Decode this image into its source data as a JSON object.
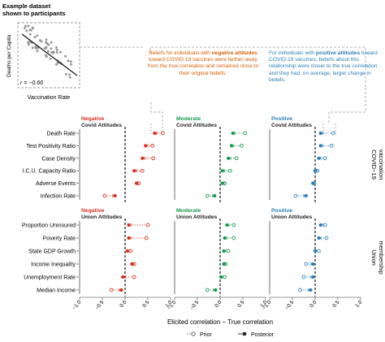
{
  "example": {
    "title": "Example dataset\nshown to participants",
    "ylabel": "Deaths per Capita",
    "xlabel": "Vaccination Rate",
    "r_label": "r = −0.66"
  },
  "annotations": {
    "left": {
      "pre": "Beliefs for individuals with",
      "bold": "negative attitudes",
      "post": "toward COVID-19 vaccines were farther away from the true correlation and remained close to their original beliefs."
    },
    "right": {
      "pre": "For individuals with",
      "bold": "positive attitudes",
      "post": "toward COVID-19 vaccines, beliefs about this relationship were closer to the true correlation and they had, on average, larger change in beliefs."
    }
  },
  "colors": {
    "negative": "#d7301f",
    "moderate": "#1a9850",
    "positive": "#2b7fb5",
    "annotation_left": "#d95f02",
    "annotation_right": "#2b7fb5"
  },
  "chart_data": {
    "type": "scatter",
    "xlabel": "Elicited correlation − True correlation",
    "xlim": [
      -1.0,
      1.0
    ],
    "xticks": [
      "−1.0",
      "−0.5",
      "0.0",
      "0.5",
      "1.0"
    ],
    "legend": {
      "prior": "Prior",
      "posterior": "Posterior",
      "placement": "bottom"
    },
    "columns": [
      {
        "key": "neg",
        "line1": "Negative",
        "line2": "Covid Attitudes",
        "line2b": "Union Attitudes",
        "color": "negative"
      },
      {
        "key": "mod",
        "line1": "Moderate",
        "line2": "Covid Attitudes",
        "line2b": "Union Attitudes",
        "color": "moderate"
      },
      {
        "key": "pos",
        "line1": "Positive",
        "line2": "Covid Attitudes",
        "line2b": "Union Attitudes",
        "color": "positive"
      }
    ],
    "panels": [
      {
        "strip": "COVID−19\nvaccination",
        "categories": [
          "Death Rate",
          "Test Positivity Ratio",
          "Case Density",
          "I.C.U. Capacity Ratio",
          "Adverse Events",
          "Infection Rate"
        ],
        "prior": {
          "neg": [
            0.83,
            0.6,
            0.62,
            0.38,
            0.3,
            -0.45
          ],
          "mod": [
            0.55,
            0.47,
            0.36,
            0.22,
            0.1,
            -0.28
          ],
          "pos": [
            0.4,
            0.36,
            0.22,
            0.05,
            -0.02,
            -0.43
          ]
        },
        "posterior": {
          "neg": [
            0.65,
            0.45,
            0.38,
            0.2,
            0.25,
            -0.22
          ],
          "mod": [
            0.28,
            0.25,
            0.18,
            0.05,
            0.05,
            -0.12
          ],
          "pos": [
            0.12,
            0.12,
            0.08,
            0.0,
            -0.05,
            -0.2
          ]
        }
      },
      {
        "strip": "Union\nmembership",
        "categories": [
          "Proportion Uninsured",
          "Poverty Rate",
          "State GDP Growth",
          "Income Inequality",
          "Unemployment Rate",
          "Median Income"
        ],
        "prior": {
          "neg": [
            0.5,
            0.47,
            0.12,
            0.2,
            0.2,
            -0.3
          ],
          "mod": [
            0.3,
            0.3,
            0.18,
            0.12,
            0.1,
            -0.28
          ],
          "pos": [
            0.22,
            0.25,
            0.08,
            -0.2,
            -0.25,
            -0.33
          ]
        },
        "posterior": {
          "neg": [
            0.08,
            0.08,
            0.05,
            0.15,
            -0.05,
            -0.08
          ],
          "mod": [
            0.15,
            0.1,
            0.08,
            0.08,
            0.02,
            -0.1
          ],
          "pos": [
            0.12,
            0.08,
            0.0,
            -0.05,
            -0.05,
            -0.1
          ]
        }
      }
    ]
  }
}
